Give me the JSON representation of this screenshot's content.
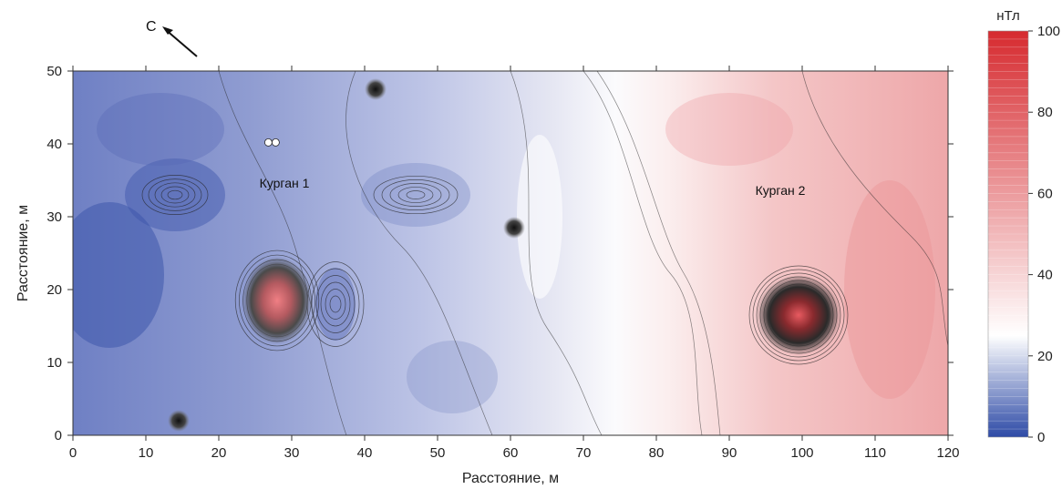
{
  "chart_data": {
    "type": "heatmap",
    "title": "",
    "xlabel": "Расстояние, м",
    "ylabel": "Расстояние, м",
    "xlim": [
      0,
      120
    ],
    "ylim": [
      0,
      50
    ],
    "x_ticks": [
      0,
      10,
      20,
      30,
      40,
      50,
      60,
      70,
      80,
      90,
      100,
      110,
      120
    ],
    "y_ticks": [
      0,
      10,
      20,
      30,
      40,
      50
    ],
    "colorbar": {
      "label": "нТл",
      "range": [
        0,
        100
      ],
      "ticks": [
        0,
        20,
        40,
        60,
        80,
        100
      ],
      "stops": [
        {
          "value": 0,
          "color": "#2d4aa6"
        },
        {
          "value": 25,
          "color": "#ffffff"
        },
        {
          "value": 100,
          "color": "#d62a2f"
        }
      ]
    },
    "contour_lines": true,
    "annotations": [
      {
        "text": "Курган 1",
        "x": 29,
        "y": 34.5
      },
      {
        "text": "Курган 2",
        "x": 97,
        "y": 33.5
      }
    ],
    "north_arrow": {
      "label": "С"
    },
    "anomalies": [
      {
        "name": "Курган 1 center",
        "x": 28,
        "y": 18.5,
        "value": 55
      },
      {
        "name": "Курган 2 center",
        "x": 99.5,
        "y": 16.5,
        "value": 90
      },
      {
        "name": "point",
        "x": 14.5,
        "y": 2,
        "value": 5
      },
      {
        "name": "point",
        "x": 41.5,
        "y": 47.5,
        "value": 12
      },
      {
        "name": "point",
        "x": 60.5,
        "y": 28.5,
        "value": 12
      }
    ]
  }
}
